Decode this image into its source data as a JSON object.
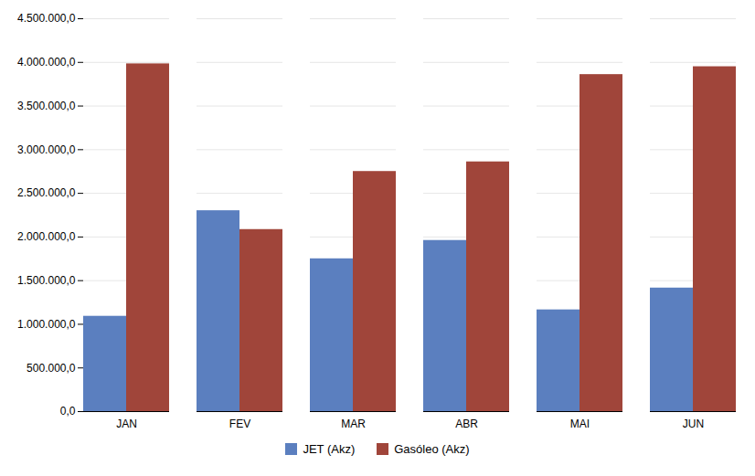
{
  "chart_data": {
    "type": "bar",
    "categories": [
      "JAN",
      "FEV",
      "MAR",
      "ABR",
      "MAI",
      "JUN"
    ],
    "series": [
      {
        "name": "JET (Akz)",
        "color": "#5B7FBF",
        "values": [
          1091522.0,
          2300798.0,
          1750000.0,
          1960000.0,
          1165000.0,
          1415000.0
        ]
      },
      {
        "name": "Gasóleo (Akz)",
        "color": "#A0453A",
        "values": [
          3982951.0,
          2085000.0,
          2750000.0,
          2860000.0,
          3860000.0,
          3950000.0
        ]
      }
    ],
    "ylim": [
      0,
      4500000
    ],
    "yticks": [
      {
        "value": 0,
        "label": "0,0"
      },
      {
        "value": 500000,
        "label": "500.000,0"
      },
      {
        "value": 1000000,
        "label": "1.000.000,0"
      },
      {
        "value": 1500000,
        "label": "1.500.000,0"
      },
      {
        "value": 2000000,
        "label": "2.000.000,0"
      },
      {
        "value": 2500000,
        "label": "2.500.000,0"
      },
      {
        "value": 3000000,
        "label": "3.000.000,0"
      },
      {
        "value": 3500000,
        "label": "3.500.000,0"
      },
      {
        "value": 4000000,
        "label": "4.000.000,0"
      },
      {
        "value": 4500000,
        "label": "4.500.000,0"
      }
    ],
    "grid": true,
    "legend": "bottom"
  }
}
